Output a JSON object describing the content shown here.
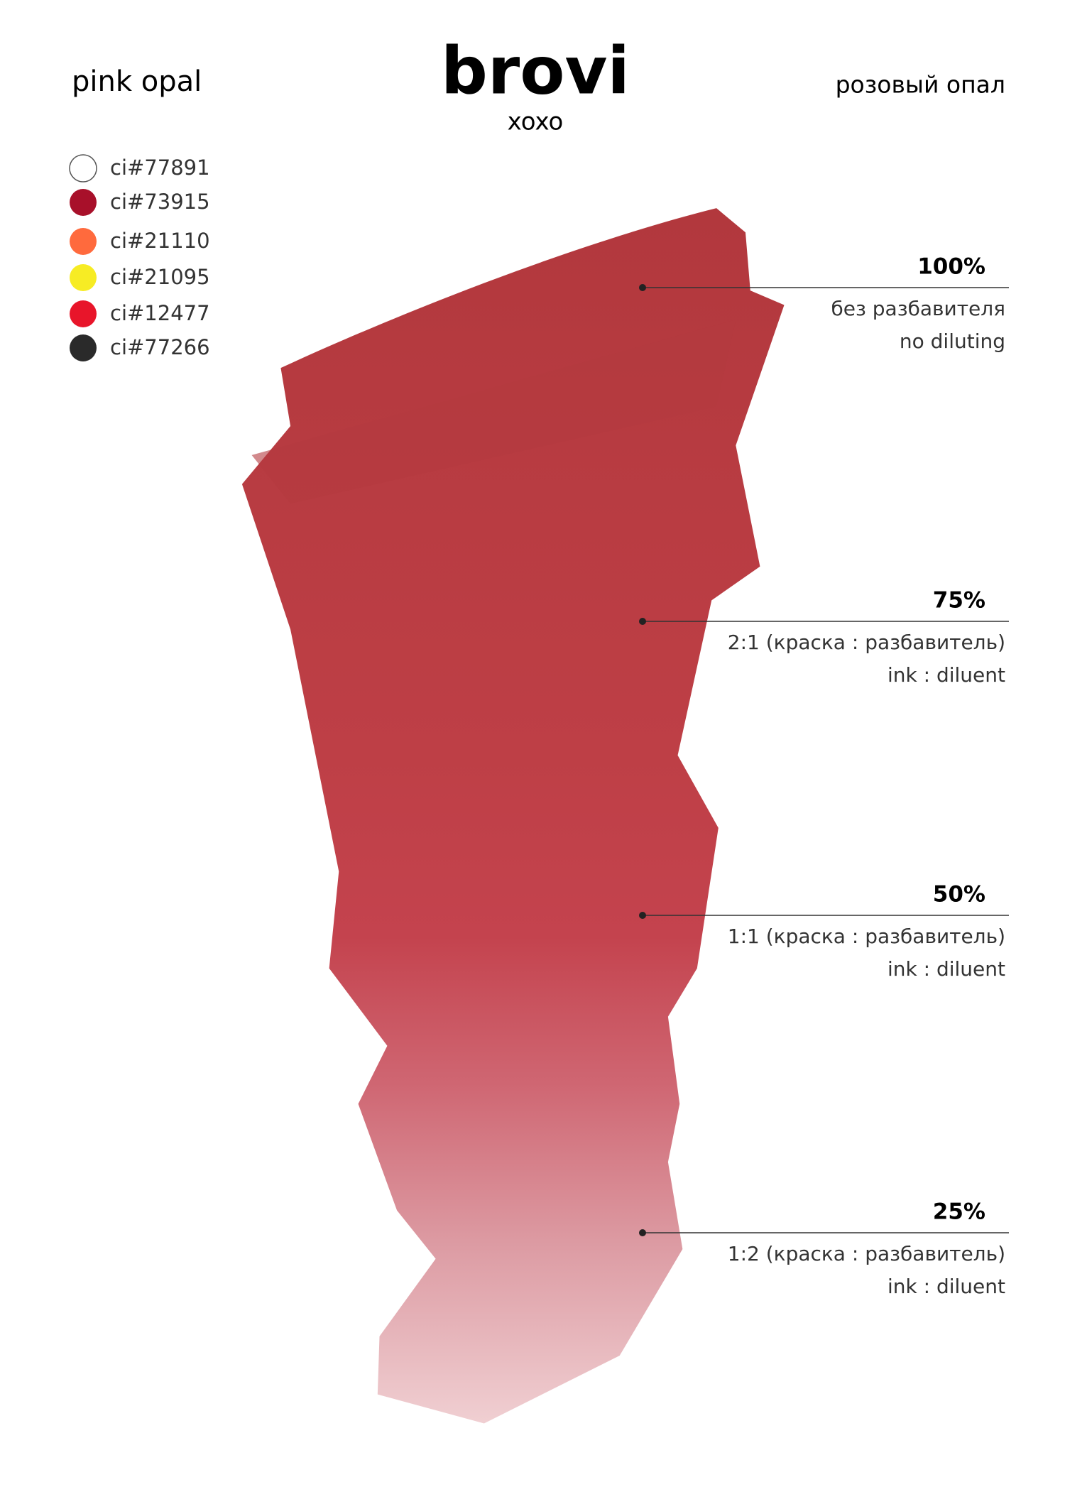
{
  "header": {
    "left": "pink opal",
    "brand": "brovi",
    "sub": "xoxo",
    "right": "розовый опал"
  },
  "pigments": [
    {
      "name": "ci#77891",
      "color": "#ffffff"
    },
    {
      "name": "ci#73915",
      "color": "#a8102a"
    },
    {
      "name": "ci#21110",
      "color": "#ff6a3d"
    },
    {
      "name": "ci#21095",
      "color": "#f7ec24"
    },
    {
      "name": "ci#12477",
      "color": "#e8152a"
    },
    {
      "name": "ci#77266",
      "color": "#2a2a2a"
    }
  ],
  "levels": [
    {
      "label": "100%",
      "lines": [
        "без разбавителя",
        "no diluting"
      ]
    },
    {
      "label": "75%",
      "lines": [
        "2:1 (краска : разбавитель)",
        "ink : diluent"
      ]
    },
    {
      "label": "50%",
      "lines": [
        "1:1 (краска : разбавитель)",
        "ink : diluent"
      ]
    },
    {
      "label": "25%",
      "lines": [
        "1:2 (краска : разбавитель)",
        "ink : diluent"
      ]
    }
  ]
}
